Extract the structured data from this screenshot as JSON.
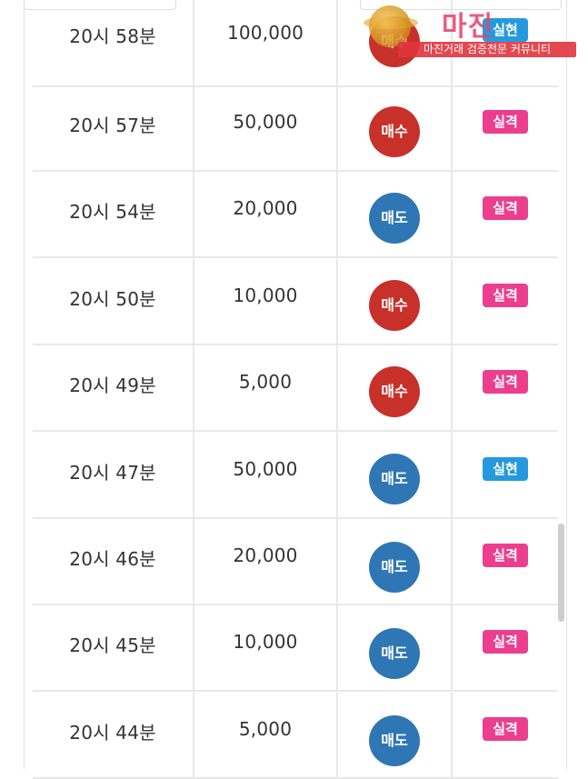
{
  "rows": [
    {
      "time": "20시 58분",
      "amount": "100,000",
      "side": "매수",
      "side_type": "buy",
      "result": "실현",
      "result_type": "win"
    },
    {
      "time": "20시 57분",
      "amount": "50,000",
      "side": "매수",
      "side_type": "buy",
      "result": "실격",
      "result_type": "fail"
    },
    {
      "time": "20시 54분",
      "amount": "20,000",
      "side": "매도",
      "side_type": "sell",
      "result": "실격",
      "result_type": "fail"
    },
    {
      "time": "20시 50분",
      "amount": "10,000",
      "side": "매수",
      "side_type": "buy",
      "result": "실격",
      "result_type": "fail"
    },
    {
      "time": "20시 49분",
      "amount": "5,000",
      "side": "매수",
      "side_type": "buy",
      "result": "실격",
      "result_type": "fail"
    },
    {
      "time": "20시 47분",
      "amount": "50,000",
      "side": "매도",
      "side_type": "sell",
      "result": "실현",
      "result_type": "win"
    },
    {
      "time": "20시 46분",
      "amount": "20,000",
      "side": "매도",
      "side_type": "sell",
      "result": "실격",
      "result_type": "fail"
    },
    {
      "time": "20시 45분",
      "amount": "10,000",
      "side": "매도",
      "side_type": "sell",
      "result": "실격",
      "result_type": "fail"
    },
    {
      "time": "20시 44분",
      "amount": "5,000",
      "side": "매도",
      "side_type": "sell",
      "result": "실격",
      "result_type": "fail"
    }
  ],
  "watermark": {
    "title": "마진",
    "subtitle": "마진거래 검증전문 커뮤니티"
  },
  "colors": {
    "buy": "#c8302a",
    "sell": "#2f76b4",
    "fail_badge": "#ec3e8f",
    "win_badge": "#2699de"
  }
}
